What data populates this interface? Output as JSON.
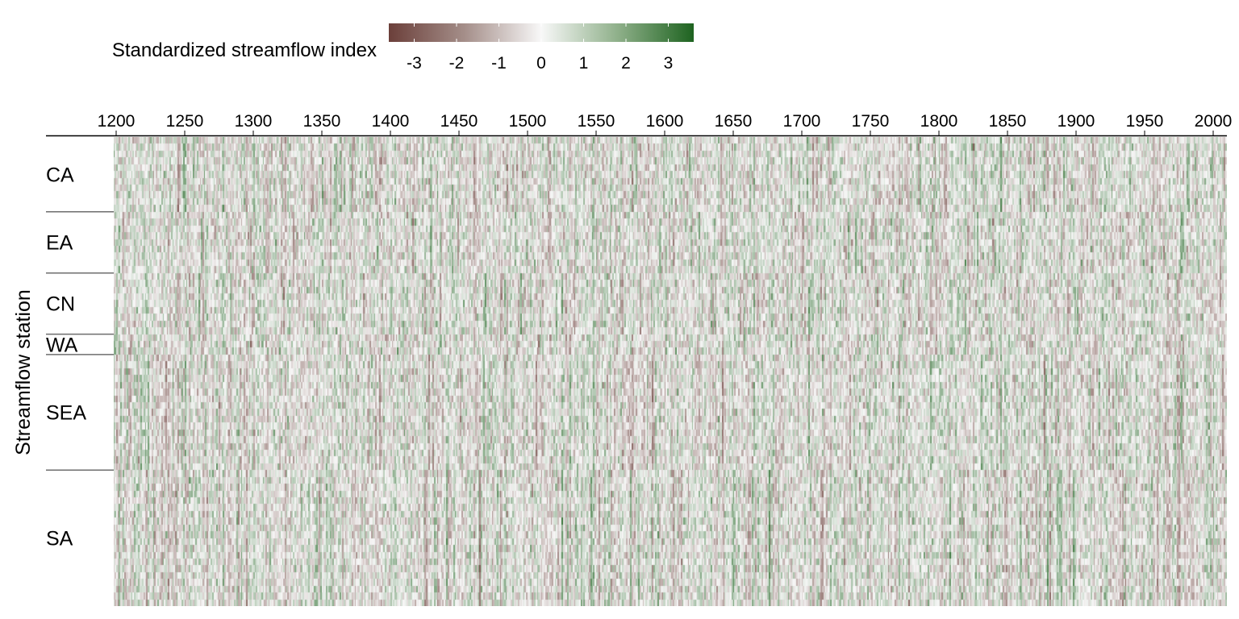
{
  "chart_data": {
    "type": "heatmap",
    "title": "",
    "xlabel": "",
    "ylabel": "Streamflow station",
    "x_range": [
      1200,
      2012
    ],
    "x_ticks": [
      1200,
      1250,
      1300,
      1350,
      1400,
      1450,
      1500,
      1550,
      1600,
      1650,
      1700,
      1750,
      1800,
      1850,
      1900,
      1950,
      2000
    ],
    "x_axis_position": "top",
    "legend": {
      "title": "Standardized streamflow index",
      "placement": "top-left",
      "range": [
        -3.6,
        3.6
      ],
      "ticks": [
        -3,
        -2,
        -1,
        0,
        1,
        2,
        3
      ],
      "colors": {
        "low": "#6b3f3a",
        "mid": "#f8f8f8",
        "high": "#1e6320"
      }
    },
    "groups": [
      {
        "name": "CA",
        "stations": 11
      },
      {
        "name": "EA",
        "stations": 9
      },
      {
        "name": "CN",
        "stations": 9
      },
      {
        "name": "WA",
        "stations": 3
      },
      {
        "name": "SEA",
        "stations": 17
      },
      {
        "name": "SA",
        "stations": 20
      }
    ],
    "grid": false,
    "group_separator_color": "#6e6e6e"
  }
}
